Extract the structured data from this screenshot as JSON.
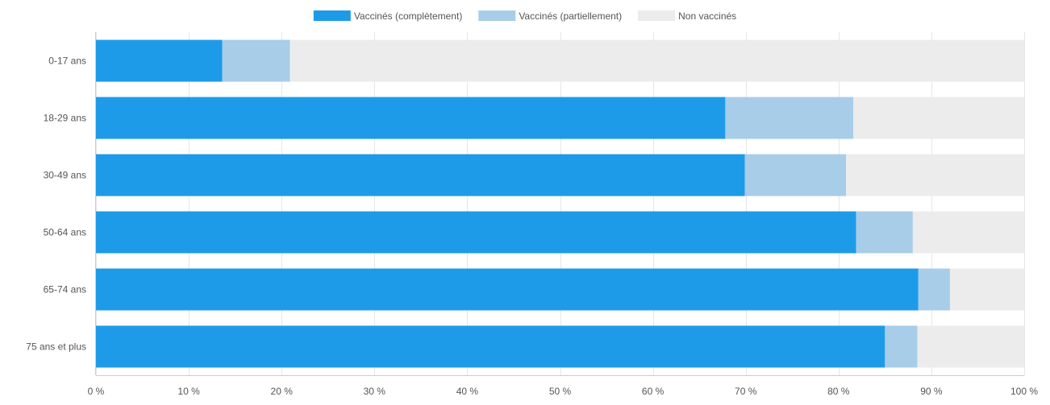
{
  "chart_data": {
    "type": "bar",
    "orientation": "horizontal",
    "stacked": true,
    "categories": [
      "0-17 ans",
      "18-29 ans",
      "30-49 ans",
      "50-64 ans",
      "65-74 ans",
      "75 ans et plus"
    ],
    "series": [
      {
        "name": "Vaccinés (complètement)",
        "color": "#1e9be8",
        "values": [
          13.6,
          67.8,
          69.9,
          81.9,
          88.6,
          85.0
        ]
      },
      {
        "name": "Vaccinés (partiellement)",
        "color": "#a8cde8",
        "values": [
          7.3,
          13.8,
          10.9,
          6.1,
          3.4,
          3.5
        ]
      },
      {
        "name": "Non vaccinés",
        "color": "#ececec",
        "values": [
          79.1,
          18.4,
          19.2,
          12.0,
          8.0,
          11.5
        ]
      }
    ],
    "xlim": [
      0,
      100
    ],
    "xticks": [
      0,
      10,
      20,
      30,
      40,
      50,
      60,
      70,
      80,
      90,
      100
    ],
    "tick_suffix": " %",
    "grid": true,
    "legend_position": "top-center"
  }
}
